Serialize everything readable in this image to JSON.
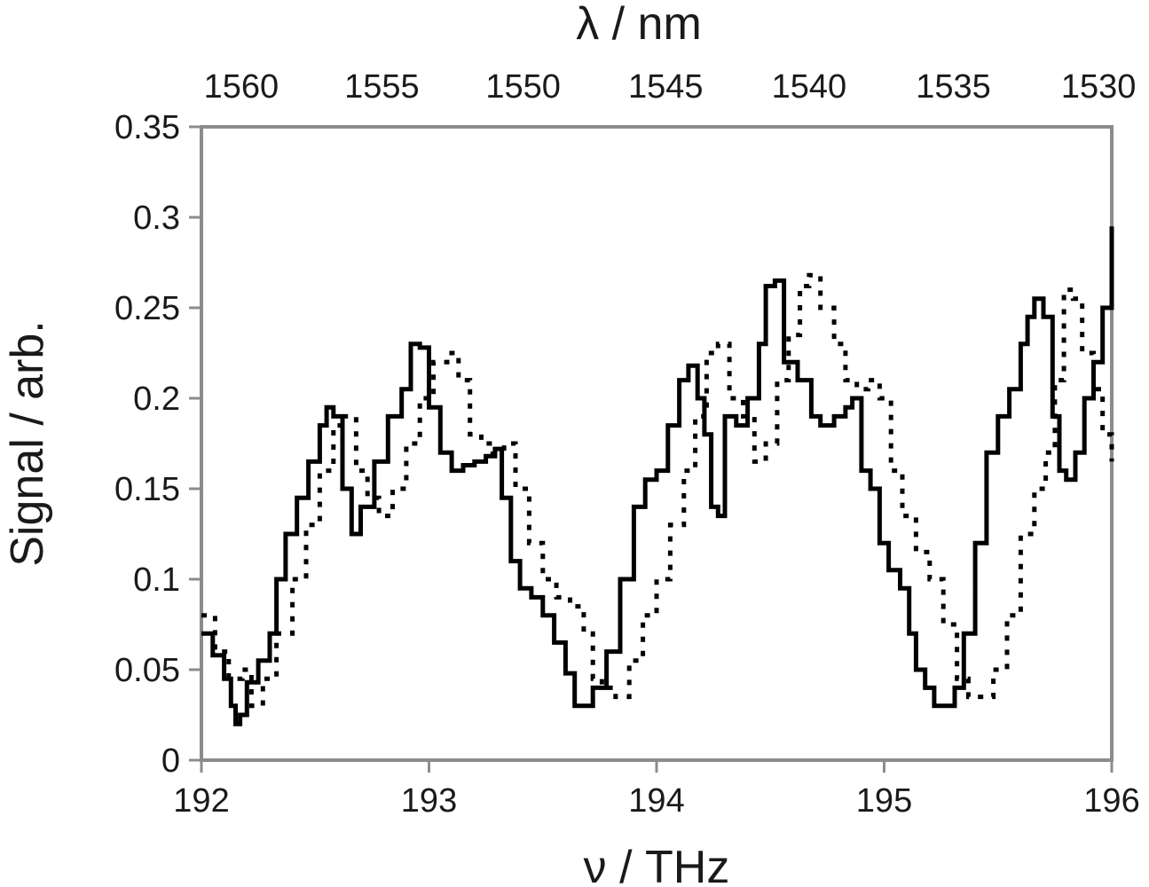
{
  "chart_data": {
    "type": "line",
    "xlabel": "ν / THz",
    "ylabel": "Signal / arb.",
    "top_xlabel": "λ / nm",
    "xlim": [
      192,
      196
    ],
    "ylim": [
      0,
      0.35
    ],
    "x_ticks": [
      192,
      193,
      194,
      195,
      196
    ],
    "y_ticks": [
      "0",
      "0.05",
      "0.1",
      "0.15",
      "0.2",
      "0.25",
      "0.3",
      "0.35"
    ],
    "top_ticks": [
      {
        "label": "1560",
        "nu": 192.175
      },
      {
        "label": "1555",
        "nu": 192.793
      },
      {
        "label": "1550",
        "nu": 193.414
      },
      {
        "label": "1545",
        "nu": 194.04
      },
      {
        "label": "1540",
        "nu": 194.67
      },
      {
        "label": "1535",
        "nu": 195.304
      },
      {
        "label": "1530",
        "nu": 195.942
      }
    ],
    "grid": false,
    "legend": "none",
    "series": [
      {
        "style": "solid",
        "color": "#000000",
        "x": [
          192.0,
          192.05,
          192.1,
          192.13,
          192.15,
          192.17,
          192.2,
          192.25,
          192.3,
          192.33,
          192.37,
          192.42,
          192.47,
          192.52,
          192.55,
          192.58,
          192.62,
          192.66,
          192.7,
          192.76,
          192.82,
          192.88,
          192.92,
          192.96,
          193.0,
          193.05,
          193.1,
          193.15,
          193.2,
          193.25,
          193.29,
          193.32,
          193.36,
          193.4,
          193.45,
          193.5,
          193.55,
          193.6,
          193.64,
          193.67,
          193.72,
          193.78,
          193.84,
          193.9,
          193.95,
          194.0,
          194.05,
          194.1,
          194.14,
          194.18,
          194.21,
          194.24,
          194.27,
          194.3,
          194.35,
          194.4,
          194.45,
          194.48,
          194.52,
          194.56,
          194.62,
          194.68,
          194.72,
          194.78,
          194.83,
          194.86,
          194.9,
          194.94,
          194.98,
          195.02,
          195.07,
          195.11,
          195.14,
          195.18,
          195.22,
          195.27,
          195.31,
          195.35,
          195.4,
          195.45,
          195.5,
          195.55,
          195.6,
          195.63,
          195.66,
          195.7,
          195.74,
          195.77,
          195.8,
          195.84,
          195.88,
          195.92,
          195.96,
          196.0
        ],
        "y": [
          0.07,
          0.058,
          0.045,
          0.03,
          0.02,
          0.025,
          0.043,
          0.055,
          0.07,
          0.1,
          0.125,
          0.145,
          0.165,
          0.185,
          0.195,
          0.19,
          0.15,
          0.125,
          0.14,
          0.165,
          0.19,
          0.205,
          0.23,
          0.228,
          0.195,
          0.17,
          0.16,
          0.163,
          0.165,
          0.168,
          0.172,
          0.145,
          0.11,
          0.095,
          0.09,
          0.08,
          0.065,
          0.048,
          0.03,
          0.03,
          0.04,
          0.06,
          0.1,
          0.14,
          0.155,
          0.16,
          0.185,
          0.21,
          0.218,
          0.2,
          0.18,
          0.14,
          0.135,
          0.19,
          0.185,
          0.2,
          0.23,
          0.262,
          0.265,
          0.22,
          0.21,
          0.19,
          0.185,
          0.19,
          0.195,
          0.2,
          0.16,
          0.15,
          0.12,
          0.105,
          0.095,
          0.07,
          0.05,
          0.04,
          0.03,
          0.03,
          0.04,
          0.07,
          0.12,
          0.17,
          0.19,
          0.205,
          0.23,
          0.245,
          0.255,
          0.245,
          0.19,
          0.16,
          0.155,
          0.17,
          0.2,
          0.22,
          0.25,
          0.295
        ]
      },
      {
        "style": "dotted",
        "color": "#000000",
        "x": [
          192.0,
          192.06,
          192.12,
          192.18,
          192.22,
          192.27,
          192.33,
          192.4,
          192.46,
          192.52,
          192.58,
          192.63,
          192.68,
          192.73,
          192.78,
          192.84,
          192.9,
          192.96,
          193.02,
          193.08,
          193.13,
          193.18,
          193.23,
          193.28,
          193.33,
          193.38,
          193.44,
          193.5,
          193.56,
          193.62,
          193.68,
          193.72,
          193.76,
          193.82,
          193.88,
          193.94,
          194.0,
          194.06,
          194.12,
          194.17,
          194.22,
          194.27,
          194.32,
          194.38,
          194.43,
          194.48,
          194.53,
          194.58,
          194.63,
          194.67,
          194.72,
          194.78,
          194.83,
          194.88,
          194.93,
          194.98,
          195.03,
          195.08,
          195.14,
          195.2,
          195.26,
          195.32,
          195.37,
          195.42,
          195.48,
          195.54,
          195.6,
          195.66,
          195.71,
          195.75,
          195.79,
          195.83,
          195.87,
          195.92,
          195.96,
          196.0
        ],
        "y": [
          0.08,
          0.06,
          0.045,
          0.05,
          0.03,
          0.045,
          0.07,
          0.1,
          0.13,
          0.16,
          0.185,
          0.19,
          0.16,
          0.145,
          0.135,
          0.15,
          0.175,
          0.2,
          0.22,
          0.225,
          0.21,
          0.18,
          0.175,
          0.17,
          0.175,
          0.15,
          0.12,
          0.1,
          0.09,
          0.085,
          0.07,
          0.045,
          0.04,
          0.035,
          0.055,
          0.08,
          0.1,
          0.13,
          0.16,
          0.19,
          0.225,
          0.23,
          0.2,
          0.19,
          0.165,
          0.175,
          0.21,
          0.235,
          0.262,
          0.268,
          0.25,
          0.23,
          0.21,
          0.205,
          0.21,
          0.2,
          0.16,
          0.135,
          0.115,
          0.1,
          0.075,
          0.045,
          0.035,
          0.035,
          0.05,
          0.08,
          0.125,
          0.15,
          0.17,
          0.21,
          0.26,
          0.255,
          0.225,
          0.205,
          0.18,
          0.165
        ]
      }
    ]
  }
}
